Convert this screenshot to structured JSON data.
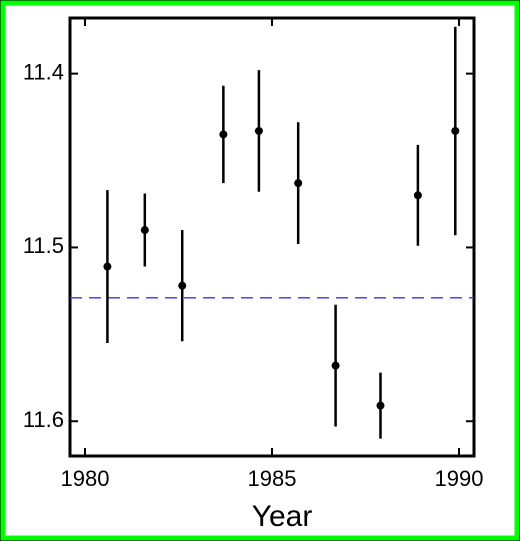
{
  "chart_data": {
    "type": "errorbar",
    "x_label": "Year",
    "x": [
      1980.6,
      1981.6,
      1982.6,
      1983.7,
      1984.65,
      1985.7,
      1986.7,
      1987.9,
      1988.9,
      1989.9
    ],
    "values": [
      11.511,
      11.49,
      11.522,
      11.435,
      11.433,
      11.463,
      11.568,
      11.591,
      11.47,
      11.433
    ],
    "errors": [
      0.044,
      0.021,
      0.032,
      0.028,
      0.035,
      0.035,
      0.035,
      0.019,
      0.029,
      0.06
    ],
    "color": "#000000",
    "reference_line": 11.529,
    "reference_color": "#3333ff",
    "xlim": [
      1979.6,
      1990.4
    ],
    "xticks": [
      1980,
      1985,
      1990
    ],
    "ylim": [
      11.62,
      11.368
    ],
    "yticks": [
      11.4,
      11.5,
      11.6
    ]
  }
}
